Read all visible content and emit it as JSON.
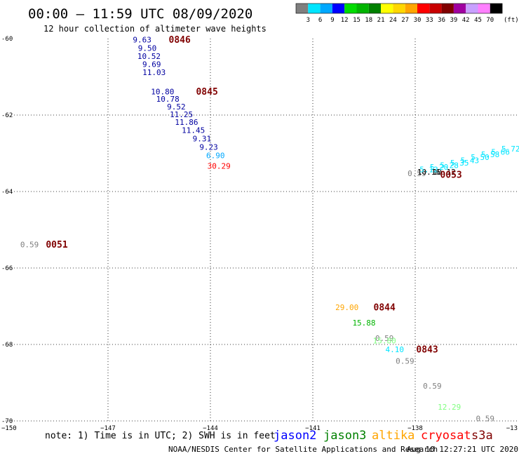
{
  "header": {
    "title": "00:00 – 11:59 UTC 08/09/2020",
    "subtitle": "12 hour collection of altimeter wave heights"
  },
  "colorbar": {
    "labels": [
      "3",
      "6",
      "9",
      "12",
      "15",
      "18",
      "21",
      "24",
      "27",
      "30",
      "33",
      "36",
      "39",
      "42",
      "45",
      "70"
    ],
    "unit": "(ft)",
    "colors": [
      "#7f7f7f",
      "#00e5ff",
      "#00a8ff",
      "#0000ff",
      "#00dc00",
      "#00b400",
      "#008000",
      "#ffff00",
      "#ffd700",
      "#ffa500",
      "#ff0000",
      "#c80000",
      "#800000",
      "#a000a0",
      "#c8a0ff",
      "#ff80ff",
      "#000000"
    ]
  },
  "chart_data": {
    "type": "scatter",
    "xlim": [
      -150,
      -135
    ],
    "ylim": [
      -70,
      -60
    ],
    "x_ticks": [
      -147,
      -144,
      -141,
      -138
    ],
    "x_tick_labels": [
      "−147",
      "−144",
      "−141",
      "−138"
    ],
    "x_edge_labels": [
      "−150",
      "−13"
    ],
    "y_ticks": [
      -60,
      -62,
      -64,
      -66,
      -68,
      -70
    ],
    "y_tick_labels": [
      "-60",
      "-62",
      "-64",
      "-66",
      "-68",
      "-70"
    ],
    "grid": true,
    "points": [
      {
        "lon": -146.0,
        "lat": -60.05,
        "swh": "9.63",
        "color": "#0000a0"
      },
      {
        "lon": -145.85,
        "lat": -60.27,
        "swh": "9.50",
        "color": "#0000a0"
      },
      {
        "lon": -145.8,
        "lat": -60.48,
        "swh": "10.52",
        "color": "#0000a0"
      },
      {
        "lon": -145.72,
        "lat": -60.69,
        "swh": "9.69",
        "color": "#0000a0"
      },
      {
        "lon": -145.65,
        "lat": -60.9,
        "swh": "11.03",
        "color": "#0000a0"
      },
      {
        "lon": -145.4,
        "lat": -61.4,
        "swh": "10.80",
        "color": "#0000a0"
      },
      {
        "lon": -145.25,
        "lat": -61.6,
        "swh": "10.78",
        "color": "#0000a0"
      },
      {
        "lon": -145.0,
        "lat": -61.8,
        "swh": "9.52",
        "color": "#0000a0"
      },
      {
        "lon": -144.85,
        "lat": -62.0,
        "swh": "11.25",
        "color": "#0000a0"
      },
      {
        "lon": -144.7,
        "lat": -62.2,
        "swh": "11.86",
        "color": "#0000a0"
      },
      {
        "lon": -144.5,
        "lat": -62.41,
        "swh": "11.45",
        "color": "#0000a0"
      },
      {
        "lon": -144.25,
        "lat": -62.63,
        "swh": "9.31",
        "color": "#0000a0"
      },
      {
        "lon": -144.05,
        "lat": -62.85,
        "swh": "9.23",
        "color": "#0000a0"
      },
      {
        "lon": -143.85,
        "lat": -63.07,
        "swh": "6.90",
        "color": "#00a8ff"
      },
      {
        "lon": -143.75,
        "lat": -63.35,
        "swh": "30.29",
        "color": "#ff0000"
      },
      {
        "lon": -149.3,
        "lat": -65.4,
        "swh": "0.59",
        "color": "#7f7f7f"
      },
      {
        "lon": -140.0,
        "lat": -67.05,
        "swh": "29.00",
        "color": "#ffa500"
      },
      {
        "lon": -139.5,
        "lat": -67.45,
        "swh": "15.88",
        "color": "#00b400"
      },
      {
        "lon": -138.9,
        "lat": -67.85,
        "swh": "0.59",
        "color": "#7f7f7f"
      },
      {
        "lon": -138.9,
        "lat": -67.92,
        "swh": "15.80",
        "color": "#80ff80"
      },
      {
        "lon": -138.6,
        "lat": -68.15,
        "swh": "4.10",
        "color": "#00e5ff"
      },
      {
        "lon": -138.3,
        "lat": -68.45,
        "swh": "0.59",
        "color": "#7f7f7f"
      },
      {
        "lon": -137.5,
        "lat": -69.1,
        "swh": "0.59",
        "color": "#7f7f7f"
      },
      {
        "lon": -137.0,
        "lat": -69.65,
        "swh": "12.29",
        "color": "#80ff80"
      },
      {
        "lon": -135.95,
        "lat": -69.95,
        "swh": "0.59",
        "color": "#7f7f7f"
      },
      {
        "lon": -137.95,
        "lat": -63.54,
        "swh": "0.59",
        "color": "#7f7f7f"
      },
      {
        "lon": -137.6,
        "lat": -63.5,
        "swh": "10.16",
        "color": "#000000"
      },
      {
        "lon": -137.15,
        "lat": -63.5,
        "swh": "10.12",
        "color": "#000000"
      },
      {
        "lon": -137.6,
        "lat": -63.44,
        "swh": "5.12",
        "color": "#00e5ff"
      },
      {
        "lon": -137.3,
        "lat": -63.38,
        "swh": "5.20",
        "color": "#00e5ff"
      },
      {
        "lon": -137.0,
        "lat": -63.33,
        "swh": "5.28",
        "color": "#00e5ff"
      },
      {
        "lon": -136.7,
        "lat": -63.27,
        "swh": "5.35",
        "color": "#00e5ff"
      },
      {
        "lon": -136.4,
        "lat": -63.2,
        "swh": "5.43",
        "color": "#00e5ff"
      },
      {
        "lon": -136.1,
        "lat": -63.12,
        "swh": "5.50",
        "color": "#00e5ff"
      },
      {
        "lon": -135.8,
        "lat": -63.05,
        "swh": "5.58",
        "color": "#00e5ff"
      },
      {
        "lon": -135.5,
        "lat": -62.98,
        "swh": "5.66",
        "color": "#00e5ff"
      },
      {
        "lon": -135.2,
        "lat": -62.9,
        "swh": "5.72",
        "color": "#00e5ff"
      }
    ],
    "time_labels": [
      {
        "lon": -144.9,
        "lat": -60.05,
        "text": "0846",
        "color": "#800000"
      },
      {
        "lon": -144.1,
        "lat": -61.4,
        "text": "0845",
        "color": "#800000"
      },
      {
        "lon": -148.5,
        "lat": -65.4,
        "text": "0051",
        "color": "#008000"
      },
      {
        "lon": -138.9,
        "lat": -67.05,
        "text": "0844",
        "color": "#800000"
      },
      {
        "lon": -137.65,
        "lat": -68.15,
        "text": "0843",
        "color": "#800000"
      },
      {
        "lon": -136.95,
        "lat": -63.58,
        "text": "0053",
        "color": "#008000"
      }
    ]
  },
  "footer": {
    "note": "note: 1) Time is in UTC; 2) SWH is in feet",
    "satellites": [
      {
        "name": "jason2",
        "color": "#0000ff"
      },
      {
        "name": "jason3",
        "color": "#008000"
      },
      {
        "name": "altika",
        "color": "#ffa500"
      },
      {
        "name": "cryosat",
        "color": "#ff0000"
      },
      {
        "name": "s3a",
        "color": "#800000"
      }
    ],
    "credit": "NOAA/NESDIS Center for Satellite Applications and Research",
    "timestamp": "Aug 10 12:27:21 UTC 2020"
  }
}
